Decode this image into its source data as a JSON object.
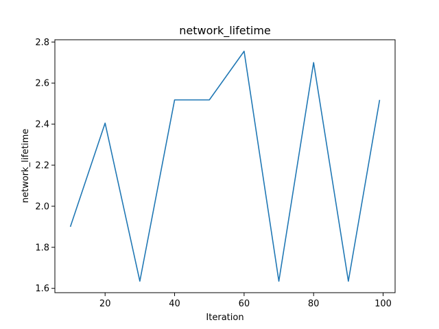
{
  "chart_data": {
    "type": "line",
    "title": "network_lifetime",
    "xlabel": "Iteration",
    "ylabel": "network_lifetime",
    "x": [
      10,
      20,
      30,
      40,
      50,
      60,
      70,
      80,
      90,
      99
    ],
    "series": [
      {
        "values": [
          1.9,
          2.405,
          1.635,
          2.518,
          2.518,
          2.755,
          1.635,
          2.7,
          1.635,
          2.518
        ]
      }
    ],
    "xlim": [
      5.55,
      103.45
    ],
    "ylim": [
      1.579,
      2.811
    ],
    "xticks": [
      20,
      40,
      60,
      80,
      100
    ],
    "xtick_labels": [
      "20",
      "40",
      "60",
      "80",
      "100"
    ],
    "yticks": [
      1.6,
      1.8,
      2.0,
      2.2,
      2.4,
      2.6,
      2.8
    ],
    "ytick_labels": [
      "1.6",
      "1.8",
      "2.0",
      "2.2",
      "2.4",
      "2.6",
      "2.8"
    ],
    "grid": false,
    "line_color": "#1f77b4"
  }
}
